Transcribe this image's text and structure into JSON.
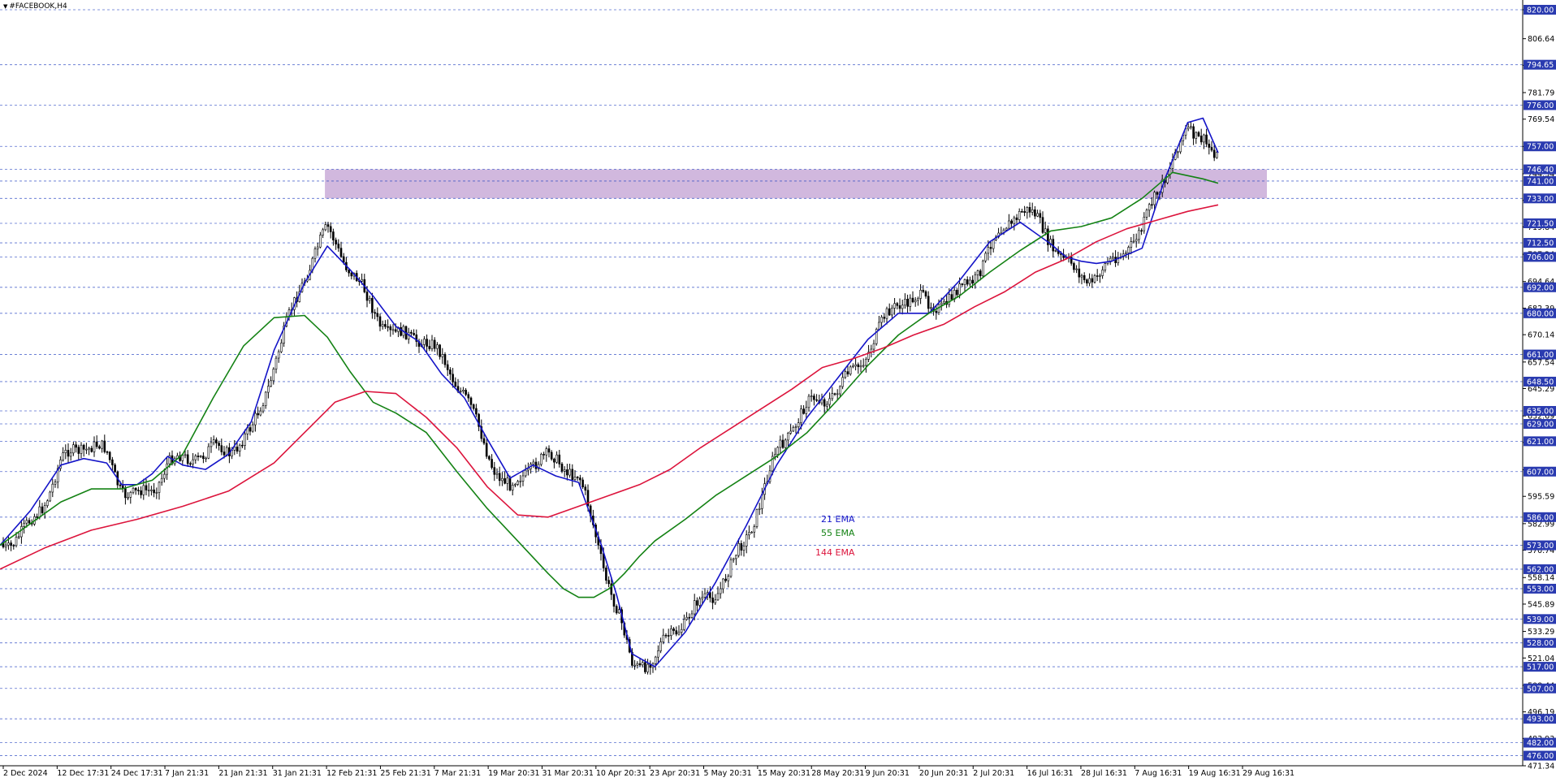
{
  "chart_title": "#FACEBOOK,H4",
  "colors": {
    "candle": "#000000",
    "grid": "#1f3fbf",
    "ema21": "#1414c8",
    "ema55": "#148214",
    "ema144": "#dc143c",
    "zone": "#c9acd8",
    "label_bg": "#2a3bb0"
  },
  "legend": [
    {
      "label": "21 EMA",
      "color": "#1414c8"
    },
    {
      "label": "55 EMA",
      "color": "#148214"
    },
    {
      "label": "144 EMA",
      "color": "#dc143c"
    }
  ],
  "chart_data": {
    "type": "line",
    "title": "#FACEBOOK,H4",
    "ylim": [
      471.34,
      820.0
    ],
    "x_ticks": [
      "2 Dec 2024",
      "12 Dec 17:31",
      "24 Dec 17:31",
      "7 Jan 21:31",
      "21 Jan 21:31",
      "31 Jan 21:31",
      "12 Feb 21:31",
      "25 Feb 21:31",
      "7 Mar 21:31",
      "19 Mar 20:31",
      "31 Mar 20:31",
      "10 Apr 20:31",
      "23 Apr 20:31",
      "5 May 20:31",
      "15 May 20:31",
      "28 May 20:31",
      "9 Jun 20:31",
      "20 Jun 20:31",
      "2 Jul 20:31",
      "16 Jul 16:31",
      "28 Jul 16:31",
      "7 Aug 16:31",
      "19 Aug 16:31",
      "29 Aug 16:31"
    ],
    "y_ticks": [
      471.34,
      483.93,
      496.19,
      508.44,
      521.04,
      533.29,
      545.89,
      558.14,
      570.74,
      582.99,
      595.59,
      607.84,
      620.44,
      632.69,
      645.29,
      657.54,
      670.14,
      682.39,
      694.64,
      707.24,
      719.84,
      732.09,
      744.34,
      756.94,
      769.54,
      781.79,
      794.39,
      806.64,
      820.0
    ],
    "levels": [
      820.0,
      794.65,
      776.0,
      757.0,
      746.4,
      741.0,
      733.0,
      721.5,
      712.5,
      706.0,
      692.0,
      680.0,
      661.0,
      648.5,
      635.0,
      629.0,
      621.0,
      607.0,
      586.0,
      573.0,
      562.0,
      553.0,
      539.0,
      528.0,
      517.0,
      507.0,
      493.0,
      482.0,
      476.0
    ],
    "zone": {
      "from_x": "12 Feb 21:31",
      "to_x": "29 Aug 16:31",
      "y_low": 733.0,
      "y_high": 746.4
    },
    "series": [
      {
        "name": "21 EMA",
        "color": "#1414c8",
        "x": [
          0,
          0.02,
          0.04,
          0.055,
          0.07,
          0.08,
          0.09,
          0.1,
          0.11,
          0.12,
          0.135,
          0.15,
          0.165,
          0.18,
          0.2,
          0.215,
          0.23,
          0.245,
          0.26,
          0.275,
          0.29,
          0.305,
          0.32,
          0.335,
          0.35,
          0.365,
          0.38,
          0.395,
          0.405,
          0.415,
          0.43,
          0.45,
          0.47,
          0.49,
          0.51,
          0.53,
          0.55,
          0.57,
          0.59,
          0.61,
          0.63,
          0.65,
          0.67,
          0.69,
          0.7,
          0.71,
          0.72,
          0.73,
          0.74,
          0.75,
          0.765,
          0.78,
          0.79,
          0.8
        ],
        "y": [
          573,
          589,
          610,
          613,
          611,
          601,
          601,
          606,
          614,
          610,
          608,
          615,
          630,
          663,
          694,
          711,
          700,
          688,
          674,
          667,
          652,
          641,
          622,
          604,
          610,
          605,
          602,
          573,
          550,
          523,
          517,
          533,
          556,
          582,
          610,
          632,
          650,
          668,
          680,
          680,
          695,
          713,
          722,
          712,
          706,
          704,
          703,
          704,
          707,
          710,
          742,
          768,
          770,
          754
        ]
      },
      {
        "name": "55 EMA",
        "color": "#148214",
        "x": [
          0,
          0.02,
          0.04,
          0.06,
          0.08,
          0.1,
          0.12,
          0.14,
          0.16,
          0.18,
          0.2,
          0.215,
          0.23,
          0.245,
          0.26,
          0.28,
          0.3,
          0.32,
          0.34,
          0.36,
          0.37,
          0.38,
          0.39,
          0.4,
          0.41,
          0.42,
          0.43,
          0.45,
          0.47,
          0.49,
          0.51,
          0.53,
          0.55,
          0.57,
          0.59,
          0.61,
          0.63,
          0.65,
          0.67,
          0.69,
          0.71,
          0.73,
          0.75,
          0.77,
          0.79,
          0.8
        ],
        "y": [
          573,
          583,
          593,
          599,
          599,
          603,
          615,
          641,
          665,
          678,
          679,
          669,
          653,
          639,
          634,
          625,
          607,
          590,
          575,
          560,
          553,
          549,
          549,
          553,
          560,
          568,
          575,
          585,
          596,
          605,
          614,
          625,
          640,
          656,
          670,
          680,
          688,
          699,
          709,
          718,
          720,
          724,
          733,
          745,
          742,
          740
        ]
      },
      {
        "name": "144 EMA",
        "color": "#dc143c",
        "x": [
          0,
          0.03,
          0.06,
          0.09,
          0.12,
          0.15,
          0.18,
          0.2,
          0.22,
          0.24,
          0.26,
          0.28,
          0.3,
          0.32,
          0.34,
          0.36,
          0.38,
          0.4,
          0.42,
          0.44,
          0.46,
          0.48,
          0.5,
          0.52,
          0.54,
          0.56,
          0.58,
          0.6,
          0.62,
          0.64,
          0.66,
          0.68,
          0.7,
          0.72,
          0.74,
          0.76,
          0.78,
          0.8
        ],
        "y": [
          562,
          572,
          580,
          585,
          591,
          598,
          611,
          625,
          639,
          644,
          643,
          632,
          618,
          600,
          587,
          586,
          591,
          596,
          601,
          608,
          618,
          627,
          636,
          645,
          655,
          659,
          664,
          670,
          675,
          683,
          690,
          699,
          705,
          713,
          719,
          723,
          727,
          730
        ]
      }
    ]
  }
}
